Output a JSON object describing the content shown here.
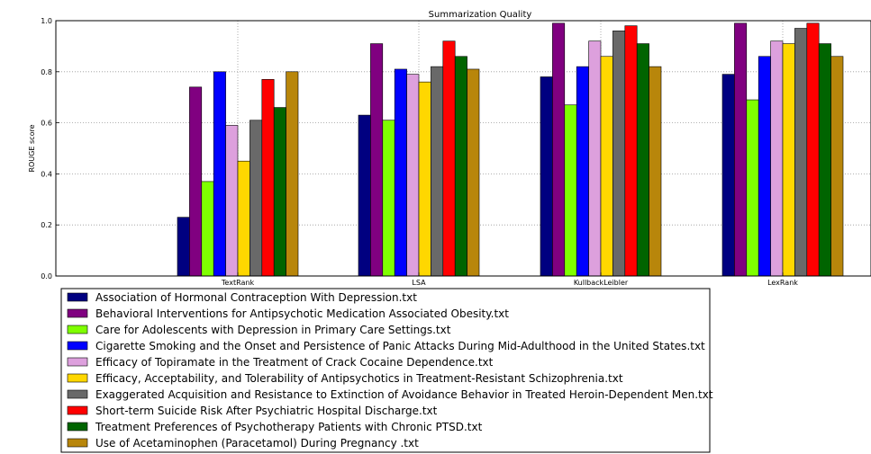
{
  "chart_data": {
    "type": "bar",
    "title": "Summarization Quality",
    "xlabel": "",
    "ylabel": "ROUGE score",
    "ylim": [
      0.0,
      1.0
    ],
    "yticks": [
      "0.0",
      "0.2",
      "0.4",
      "0.6",
      "0.8",
      "1.0"
    ],
    "grid": true,
    "legend_position": "bottom-left",
    "categories": [
      "TextRank",
      "LSA",
      "KullbackLeibler",
      "LexRank"
    ],
    "series": [
      {
        "name": "Association of Hormonal Contraception With Depression.txt",
        "color": "#000080",
        "values": [
          0.23,
          0.63,
          0.78,
          0.79
        ]
      },
      {
        "name": "Behavioral Interventions for Antipsychotic Medication Associated Obesity.txt",
        "color": "#800080",
        "values": [
          0.74,
          0.91,
          0.99,
          0.99
        ]
      },
      {
        "name": "Care for Adolescents with Depression in Primary Care Settings.txt",
        "color": "#7fff00",
        "values": [
          0.37,
          0.61,
          0.67,
          0.69
        ]
      },
      {
        "name": "Cigarette Smoking and the Onset and Persistence of Panic Attacks During Mid-Adulthood in the United States.txt",
        "color": "#0000ff",
        "values": [
          0.8,
          0.81,
          0.82,
          0.86
        ]
      },
      {
        "name": "Efficacy of Topiramate in the Treatment of Crack Cocaine Dependence.txt",
        "color": "#dda0dd",
        "values": [
          0.59,
          0.79,
          0.92,
          0.92
        ]
      },
      {
        "name": "Efficacy, Acceptability, and Tolerability of Antipsychotics in Treatment-Resistant Schizophrenia.txt",
        "color": "#ffd700",
        "values": [
          0.45,
          0.76,
          0.86,
          0.91
        ]
      },
      {
        "name": "Exaggerated Acquisition and Resistance to Extinction of Avoidance Behavior in Treated Heroin-Dependent Men.txt",
        "color": "#696969",
        "values": [
          0.61,
          0.82,
          0.96,
          0.97
        ]
      },
      {
        "name": "Short-term Suicide Risk After Psychiatric Hospital Discharge.txt",
        "color": "#ff0000",
        "values": [
          0.77,
          0.92,
          0.98,
          0.99
        ]
      },
      {
        "name": "Treatment Preferences of Psychotherapy Patients with Chronic PTSD.txt",
        "color": "#006400",
        "values": [
          0.66,
          0.86,
          0.91,
          0.91
        ]
      },
      {
        "name": "Use of Acetaminophen (Paracetamol) During Pregnancy .txt",
        "color": "#b8860b",
        "values": [
          0.8,
          0.81,
          0.82,
          0.86
        ]
      }
    ]
  }
}
